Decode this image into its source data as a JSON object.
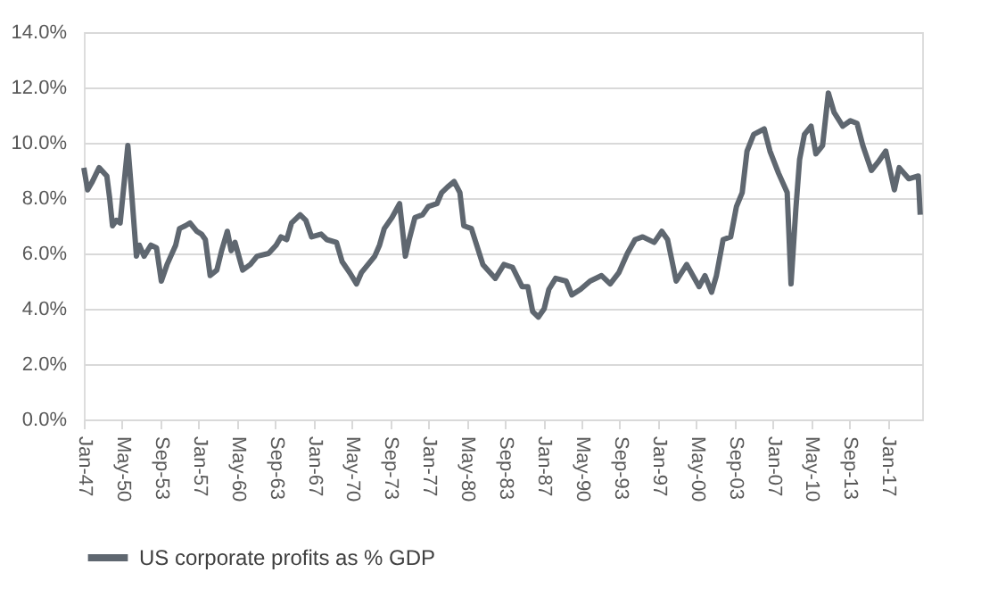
{
  "chart_data": {
    "type": "line",
    "x": [
      "1947-01",
      "1947-05",
      "1947-10",
      "1948-05",
      "1949-01",
      "1949-04",
      "1949-07",
      "1949-11",
      "1950-03",
      "1950-11",
      "1951-03",
      "1951-08",
      "1951-11",
      "1952-04",
      "1952-11",
      "1953-05",
      "1953-10",
      "1954-04",
      "1955-01",
      "1955-05",
      "1955-11",
      "1956-04",
      "1956-11",
      "1957-04",
      "1957-08",
      "1958-01",
      "1958-08",
      "1959-01",
      "1959-07",
      "1959-11",
      "1960-03",
      "1960-11",
      "1961-07",
      "1962-02",
      "1963-02",
      "1963-10",
      "1964-03",
      "1964-09",
      "1965-02",
      "1965-11",
      "1966-05",
      "1966-11",
      "1967-09",
      "1968-03",
      "1969-01",
      "1969-07",
      "1970-03",
      "1970-10",
      "1971-03",
      "1971-10",
      "1972-05",
      "1972-10",
      "1973-03",
      "1973-11",
      "1974-07",
      "1975-01",
      "1975-05",
      "1975-11",
      "1976-07",
      "1977-01",
      "1977-10",
      "1978-03",
      "1978-09",
      "1979-04",
      "1979-10",
      "1980-02",
      "1980-10",
      "1981-10",
      "1982-11",
      "1983-08",
      "1984-05",
      "1985-03",
      "1985-09",
      "1986-02",
      "1986-08",
      "1987-02",
      "1987-07",
      "1988-02",
      "1989-01",
      "1989-07",
      "1990-04",
      "1991-02",
      "1992-02",
      "1992-11",
      "1993-08",
      "1994-05",
      "1995-01",
      "1995-09",
      "1996-09",
      "1997-05",
      "1997-11",
      "1998-08",
      "1999-07",
      "2000-08",
      "2001-02",
      "2001-09",
      "2002-02",
      "2002-09",
      "2003-05",
      "2003-11",
      "2004-05",
      "2004-10",
      "2005-05",
      "2006-04",
      "2006-10",
      "2007-07",
      "2008-04",
      "2008-08",
      "2009-01",
      "2009-05",
      "2009-10",
      "2010-05",
      "2010-10",
      "2011-05",
      "2011-11",
      "2012-05",
      "2013-02",
      "2013-10",
      "2014-05",
      "2014-11",
      "2015-08",
      "2016-03",
      "2016-11",
      "2017-08",
      "2018-01",
      "2018-11",
      "2019-09",
      "2019-11"
    ],
    "series": [
      {
        "name": "US corporate profits as % GDP",
        "color": "#5f6770",
        "values": [
          9.1,
          8.3,
          8.6,
          9.1,
          8.8,
          8.0,
          7.0,
          7.2,
          7.1,
          9.9,
          8.2,
          5.9,
          6.3,
          5.9,
          6.3,
          6.2,
          5.0,
          5.6,
          6.3,
          6.9,
          7.0,
          7.1,
          6.8,
          6.7,
          6.5,
          5.2,
          5.4,
          6.1,
          6.8,
          6.1,
          6.4,
          5.4,
          5.6,
          5.9,
          6.0,
          6.3,
          6.6,
          6.5,
          7.1,
          7.4,
          7.2,
          6.6,
          6.7,
          6.5,
          6.4,
          5.7,
          5.3,
          4.9,
          5.3,
          5.6,
          5.9,
          6.3,
          6.9,
          7.3,
          7.8,
          5.9,
          6.5,
          7.3,
          7.4,
          7.7,
          7.8,
          8.2,
          8.4,
          8.6,
          8.2,
          7.0,
          6.9,
          5.6,
          5.1,
          5.6,
          5.5,
          4.8,
          4.8,
          3.9,
          3.7,
          4.0,
          4.7,
          5.1,
          5.0,
          4.5,
          4.7,
          5.0,
          5.2,
          4.9,
          5.3,
          6.0,
          6.5,
          6.6,
          6.4,
          6.8,
          6.5,
          5.0,
          5.6,
          4.8,
          5.2,
          4.6,
          5.2,
          6.5,
          6.6,
          7.7,
          8.2,
          9.7,
          10.3,
          10.5,
          9.7,
          8.9,
          8.2,
          4.9,
          7.6,
          9.4,
          10.3,
          10.6,
          9.6,
          9.9,
          11.8,
          11.1,
          10.6,
          10.8,
          10.7,
          9.9,
          9.0,
          9.3,
          9.7,
          8.3,
          9.1,
          8.7,
          8.8,
          7.4
        ]
      }
    ],
    "xlim": [
      "1947-01",
      "2020-01"
    ],
    "xticks": [
      {
        "value": "1947-01",
        "label": "Jan-47"
      },
      {
        "value": "1950-05",
        "label": "May-50"
      },
      {
        "value": "1953-09",
        "label": "Sep-53"
      },
      {
        "value": "1957-01",
        "label": "Jan-57"
      },
      {
        "value": "1960-05",
        "label": "May-60"
      },
      {
        "value": "1963-09",
        "label": "Sep-63"
      },
      {
        "value": "1967-01",
        "label": "Jan-67"
      },
      {
        "value": "1970-05",
        "label": "May-70"
      },
      {
        "value": "1973-09",
        "label": "Sep-73"
      },
      {
        "value": "1977-01",
        "label": "Jan-77"
      },
      {
        "value": "1980-05",
        "label": "May-80"
      },
      {
        "value": "1983-09",
        "label": "Sep-83"
      },
      {
        "value": "1987-01",
        "label": "Jan-87"
      },
      {
        "value": "1990-05",
        "label": "May-90"
      },
      {
        "value": "1993-09",
        "label": "Sep-93"
      },
      {
        "value": "1997-01",
        "label": "Jan-97"
      },
      {
        "value": "2000-05",
        "label": "May-00"
      },
      {
        "value": "2003-09",
        "label": "Sep-03"
      },
      {
        "value": "2007-01",
        "label": "Jan-07"
      },
      {
        "value": "2010-05",
        "label": "May-10"
      },
      {
        "value": "2013-09",
        "label": "Sep-13"
      },
      {
        "value": "2017-01",
        "label": "Jan-17"
      }
    ],
    "ylim": [
      0,
      14
    ],
    "yticks": [
      {
        "value": 0,
        "label": "0.0%"
      },
      {
        "value": 2,
        "label": "2.0%"
      },
      {
        "value": 4,
        "label": "4.0%"
      },
      {
        "value": 6,
        "label": "6.0%"
      },
      {
        "value": 8,
        "label": "8.0%"
      },
      {
        "value": 10,
        "label": "10.0%"
      },
      {
        "value": 12,
        "label": "12.0%"
      },
      {
        "value": 14,
        "label": "14.0%"
      }
    ],
    "grid": "y",
    "legend": "bottom",
    "marker": "none",
    "line_style": "solid"
  }
}
